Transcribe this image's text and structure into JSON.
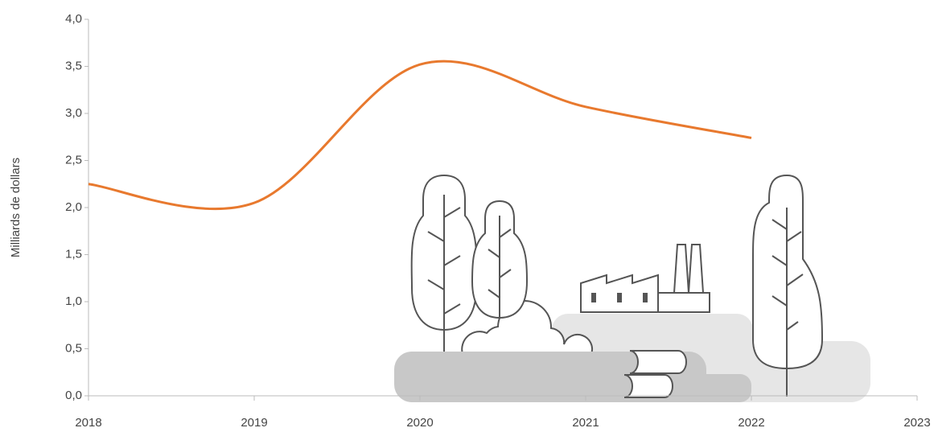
{
  "chart_data": {
    "type": "line",
    "ylabel": "Milliards de dollars",
    "x": [
      2018,
      2019,
      2020,
      2021,
      2022
    ],
    "series": [
      {
        "name": "Milliards de dollars",
        "color": "#e8792e",
        "values": [
          2.25,
          2.05,
          3.52,
          3.07,
          2.74
        ]
      }
    ],
    "xlim": [
      2018,
      2023
    ],
    "xticks": [
      2018,
      2019,
      2020,
      2021,
      2022,
      2023
    ],
    "ylim": [
      0,
      4
    ],
    "yticks": [
      {
        "value": 0,
        "label": "0,0"
      },
      {
        "value": 0.5,
        "label": "0,5"
      },
      {
        "value": 1,
        "label": "1,0"
      },
      {
        "value": 1.5,
        "label": "1,5"
      },
      {
        "value": 2,
        "label": "2,0"
      },
      {
        "value": 2.5,
        "label": "2,5"
      },
      {
        "value": 3,
        "label": "3,0"
      },
      {
        "value": 3.5,
        "label": "3,5"
      },
      {
        "value": 4,
        "label": "4,0"
      }
    ]
  }
}
